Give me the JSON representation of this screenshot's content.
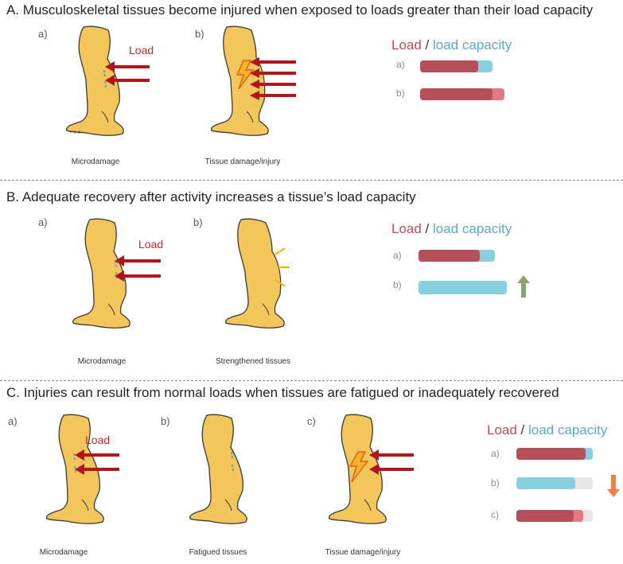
{
  "colors": {
    "load_bar": "#b5505a",
    "capacity_bar": "#88cfe0",
    "excess_bar": "#e27b80",
    "track_bar": "#e6e6e6",
    "arrow_red": "#b3151d",
    "leg_fill": "#f2c65b",
    "increase_arrow": "#8aa56a",
    "decrease_arrow": "#f07f45"
  },
  "legend_text": {
    "load": "Load",
    "sep": " / ",
    "capacity": "load capacity"
  },
  "sections": {
    "A": {
      "title": "A. Musculoskeletal tissues become injured when exposed to loads greater than their load capacity",
      "panels": [
        {
          "label": "a)",
          "caption": "Microdamage",
          "load_label": "Load"
        },
        {
          "label": "b)",
          "caption": "Tissue damage/injury"
        }
      ],
      "bars": [
        {
          "label": "a)"
        },
        {
          "label": "b)"
        }
      ]
    },
    "B": {
      "title": "B. Adequate recovery after activity increases a tissue’s load capacity",
      "panels": [
        {
          "label": "a)",
          "caption": "Microdamage",
          "load_label": "Load"
        },
        {
          "label": "b)",
          "caption": "Strengthened tissues"
        }
      ],
      "bars": [
        {
          "label": "a)"
        },
        {
          "label": "b)"
        }
      ]
    },
    "C": {
      "title": "C. Injuries can result from normal loads when tissues are fatigued or inadequately recovered",
      "panels": [
        {
          "label": "a)",
          "caption": "Microdamage",
          "load_label": "Load"
        },
        {
          "label": "b)",
          "caption": "Fatigued tissues"
        },
        {
          "label": "c)",
          "caption": "Tissue damage/injury"
        }
      ],
      "bars": [
        {
          "label": "a)"
        },
        {
          "label": "b)"
        },
        {
          "label": "c)"
        }
      ]
    }
  }
}
